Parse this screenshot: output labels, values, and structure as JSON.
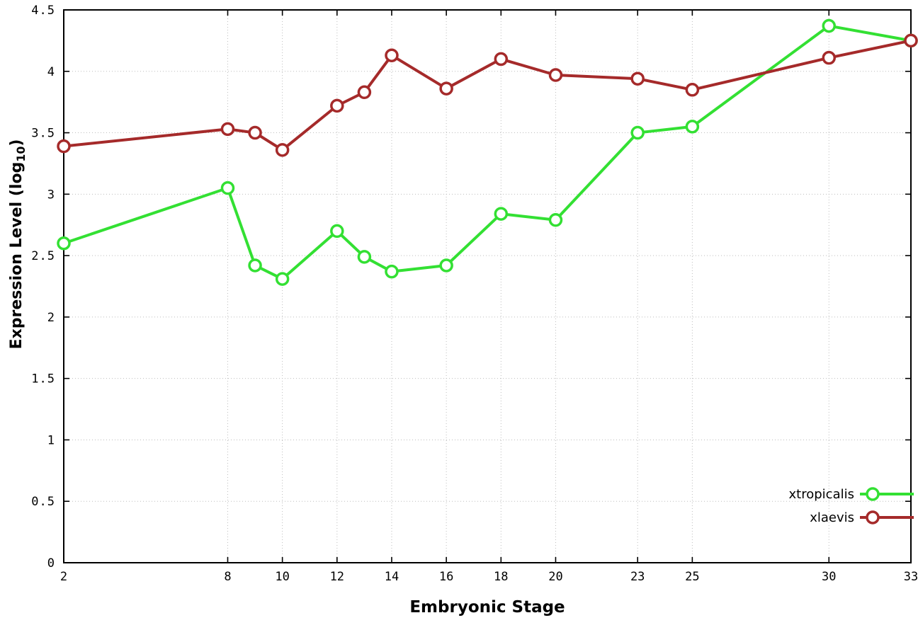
{
  "chart_data": {
    "type": "line",
    "x": [
      2,
      8,
      9,
      10,
      12,
      13,
      14,
      16,
      18,
      20,
      23,
      25,
      30,
      33
    ],
    "series": [
      {
        "name": "xtropicalis",
        "color": "#33e033",
        "values": [
          2.6,
          3.05,
          2.42,
          2.31,
          2.7,
          2.49,
          2.37,
          2.42,
          2.84,
          2.79,
          3.5,
          3.55,
          4.37,
          4.25
        ]
      },
      {
        "name": "xlaevis",
        "color": "#a52a2a",
        "values": [
          3.39,
          3.53,
          3.5,
          3.36,
          3.72,
          3.83,
          4.13,
          3.86,
          4.1,
          3.97,
          3.94,
          3.85,
          4.11,
          4.25
        ]
      }
    ],
    "xlabel": "Embryonic Stage",
    "ylabel": "Expression Level (log10)",
    "ylabel_parts": {
      "pre": "Expression Level (log",
      "sub": "10",
      "post": ")"
    },
    "xlim": [
      2,
      33
    ],
    "ylim": [
      0,
      4.5
    ],
    "xticks": {
      "values": [
        2,
        8,
        10,
        12,
        14,
        16,
        18,
        20,
        23,
        25,
        30,
        33
      ],
      "labels": [
        "2",
        "8",
        "10",
        "12",
        "14",
        "16",
        "18",
        "20",
        "23",
        "25",
        "30",
        "33"
      ]
    },
    "yticks": {
      "values": [
        0,
        0.5,
        1,
        1.5,
        2,
        2.5,
        3,
        3.5,
        4,
        4.5
      ],
      "labels": [
        "0",
        "0.5",
        "1",
        "1.5",
        "2",
        "2.5",
        "3",
        "3.5",
        "4",
        "4.5"
      ]
    },
    "grid": true,
    "legend_position": "bottom-right",
    "axis_color": "#000000",
    "grid_color": "#bdbdbd",
    "background": "#ffffff"
  }
}
